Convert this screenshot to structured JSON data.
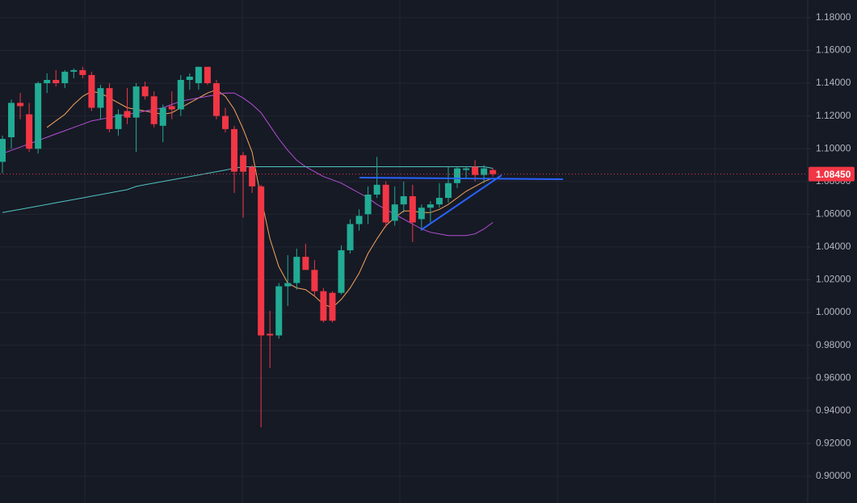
{
  "chart_data": {
    "type": "candlestick",
    "ylim": [
      0.8837,
      1.1908
    ],
    "yticks": [
      {
        "value": 1.18,
        "label": "1.18000"
      },
      {
        "value": 1.16,
        "label": "1.16000"
      },
      {
        "value": 1.14,
        "label": "1.14000"
      },
      {
        "value": 1.12,
        "label": "1.12000"
      },
      {
        "value": 1.1,
        "label": "1.10000"
      },
      {
        "value": 1.08,
        "label": "1.08000"
      },
      {
        "value": 1.06,
        "label": "1.06000"
      },
      {
        "value": 1.04,
        "label": "1.04000"
      },
      {
        "value": 1.02,
        "label": "1.02000"
      },
      {
        "value": 1.0,
        "label": "1.00000"
      },
      {
        "value": 0.98,
        "label": "0.98000"
      },
      {
        "value": 0.96,
        "label": "0.96000"
      },
      {
        "value": 0.94,
        "label": "0.94000"
      },
      {
        "value": 0.92,
        "label": "0.92000"
      },
      {
        "value": 0.9,
        "label": "0.90000"
      }
    ],
    "grid": true,
    "up_color": "#22ab94",
    "down_color": "#f23645",
    "open": [
      1.092,
      1.107,
      1.128,
      1.121,
      1.1,
      1.14,
      1.142,
      1.14,
      1.147,
      1.148,
      1.145,
      1.125,
      1.137,
      1.112,
      1.123,
      1.119,
      1.138,
      1.132,
      1.114,
      1.126,
      1.124,
      1.142,
      1.14,
      1.15,
      1.14,
      1.12,
      1.112,
      1.096,
      1.089,
      1.077,
      0.987,
      0.986,
      1.016,
      1.018,
      1.034,
      1.026,
      1.013,
      1.012,
      1.012,
      1.038,
      1.054,
      1.06,
      1.072,
      1.078,
      1.056,
      1.066,
      1.071,
      1.057,
      1.064,
      1.066,
      1.07,
      1.079,
      1.087,
      1.089,
      1.084,
      1.087
    ],
    "high": [
      1.108,
      1.13,
      1.134,
      1.128,
      1.141,
      1.146,
      1.148,
      1.148,
      1.149,
      1.15,
      1.147,
      1.139,
      1.14,
      1.124,
      1.137,
      1.14,
      1.141,
      1.135,
      1.127,
      1.135,
      1.145,
      1.146,
      1.15,
      1.15,
      1.142,
      1.125,
      1.114,
      1.098,
      1.09,
      1.078,
      1.001,
      1.018,
      1.035,
      1.039,
      1.042,
      1.032,
      1.015,
      1.013,
      1.041,
      1.057,
      1.063,
      1.077,
      1.095,
      1.08,
      1.077,
      1.08,
      1.078,
      1.066,
      1.068,
      1.079,
      1.089,
      1.089,
      1.089,
      1.093,
      1.09,
      1.088
    ],
    "low": [
      1.085,
      1.1,
      1.118,
      1.098,
      1.097,
      1.134,
      1.138,
      1.137,
      1.143,
      1.143,
      1.123,
      1.118,
      1.11,
      1.108,
      1.115,
      1.098,
      1.13,
      1.113,
      1.104,
      1.118,
      1.12,
      1.136,
      1.136,
      1.139,
      1.118,
      1.11,
      1.073,
      1.058,
      1.073,
      0.93,
      0.966,
      0.984,
      1.004,
      1.014,
      1.028,
      1.01,
      0.994,
      0.994,
      1.011,
      1.036,
      1.05,
      1.054,
      1.07,
      1.052,
      1.053,
      1.061,
      1.043,
      1.05,
      1.055,
      1.064,
      1.067,
      1.076,
      1.082,
      1.08,
      1.079,
      1.083
    ],
    "close": [
      1.106,
      1.128,
      1.126,
      1.1,
      1.14,
      1.142,
      1.14,
      1.147,
      1.148,
      1.145,
      1.125,
      1.137,
      1.112,
      1.121,
      1.119,
      1.138,
      1.132,
      1.115,
      1.125,
      1.124,
      1.142,
      1.144,
      1.15,
      1.14,
      1.12,
      1.112,
      1.086,
      1.086,
      1.077,
      0.986,
      0.986,
      1.016,
      1.018,
      1.034,
      1.026,
      1.013,
      0.995,
      0.995,
      1.038,
      1.054,
      1.059,
      1.072,
      1.078,
      1.055,
      1.066,
      1.071,
      1.055,
      1.064,
      1.066,
      1.07,
      1.079,
      1.088,
      1.088,
      1.084,
      1.088,
      1.0845
    ],
    "series": [
      {
        "color": "#f7a35c",
        "values": [
          null,
          null,
          null,
          null,
          null,
          1.113,
          1.117,
          1.121,
          1.127,
          1.132,
          1.135,
          1.134,
          1.131,
          1.128,
          1.125,
          1.124,
          1.123,
          1.122,
          1.121,
          1.122,
          1.125,
          1.128,
          1.131,
          1.134,
          1.136,
          1.132,
          1.124,
          1.112,
          1.098,
          1.07,
          1.045,
          1.028,
          1.018,
          1.015,
          1.014,
          1.01,
          1.005,
          1.003,
          1.008,
          1.015,
          1.024,
          1.036,
          1.045,
          1.053,
          1.058,
          1.062,
          1.062,
          1.061,
          1.061,
          1.063,
          1.066,
          1.07,
          1.074,
          1.077,
          1.08,
          1.082
        ]
      },
      {
        "color": "#b44fd6",
        "values": [
          1.097,
          1.099,
          1.101,
          1.103,
          1.105,
          1.107,
          1.109,
          1.111,
          1.113,
          1.115,
          1.117,
          1.118,
          1.119,
          1.12,
          1.121,
          1.122,
          1.123,
          1.124,
          1.125,
          1.127,
          1.129,
          1.13,
          1.131,
          1.132,
          1.133,
          1.134,
          1.134,
          1.131,
          1.127,
          1.122,
          1.114,
          1.106,
          1.099,
          1.093,
          1.089,
          1.086,
          1.083,
          1.081,
          1.079,
          1.076,
          1.073,
          1.07,
          1.066,
          1.063,
          1.06,
          1.057,
          1.054,
          1.051,
          1.049,
          1.048,
          1.047,
          1.047,
          1.047,
          1.048,
          1.051,
          1.055
        ]
      },
      {
        "color": "#4fc3c0",
        "values": [
          1.061,
          1.062,
          1.063,
          1.064,
          1.065,
          1.066,
          1.067,
          1.068,
          1.069,
          1.07,
          1.071,
          1.072,
          1.073,
          1.074,
          1.075,
          1.077,
          1.078,
          1.079,
          1.08,
          1.081,
          1.082,
          1.083,
          1.084,
          1.085,
          1.086,
          1.087,
          1.088,
          1.089,
          1.089,
          1.089,
          1.089,
          1.089,
          1.089,
          1.089,
          1.089,
          1.089,
          1.089,
          1.089,
          1.089,
          1.089,
          1.089,
          1.089,
          1.089,
          1.089,
          1.089,
          1.089,
          1.089,
          1.089,
          1.089,
          1.089,
          1.089,
          1.089,
          1.089,
          1.089,
          1.089,
          1.088
        ]
      }
    ],
    "last_price": {
      "value": 1.0845,
      "label": "1.08450"
    },
    "last_price_color": "#f23645"
  }
}
